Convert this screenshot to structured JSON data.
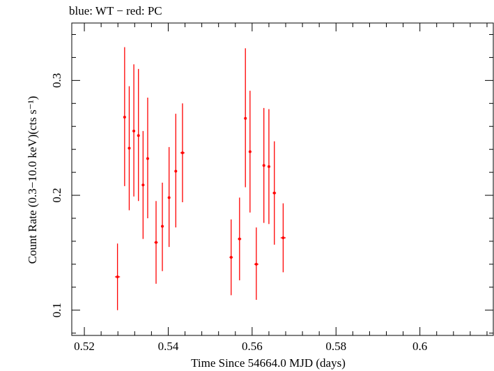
{
  "chart_data": {
    "type": "scatter",
    "title": "blue: WT − red: PC",
    "xlabel": "Time Since 54664.0 MJD (days)",
    "ylabel": "Count Rate (0.3−10.0 keV)(cts s⁻¹)",
    "xlim": [
      0.517,
      0.6175
    ],
    "ylim": [
      0.078,
      0.35
    ],
    "x_ticks": [
      0.52,
      0.54,
      0.56,
      0.58,
      0.6
    ],
    "x_tick_labels": [
      "0.52",
      "0.54",
      "0.56",
      "0.58",
      "0.6"
    ],
    "y_ticks": [
      0.1,
      0.2,
      0.3
    ],
    "y_tick_labels": [
      "0.1",
      "0.2",
      "0.3"
    ],
    "grid": false,
    "colors": {
      "WT": "#0000ff",
      "PC": "#ff0000"
    },
    "series": [
      {
        "color": "#ff0000",
        "marker": "dot-with-errorbars",
        "points": [
          {
            "x": 0.5279,
            "y": 0.129,
            "xerr": 0.0006,
            "ylo": 0.1,
            "yhi": 0.158
          },
          {
            "x": 0.5296,
            "y": 0.268,
            "xerr": 0.0003,
            "ylo": 0.208,
            "yhi": 0.329
          },
          {
            "x": 0.5307,
            "y": 0.241,
            "xerr": 0.0003,
            "ylo": 0.187,
            "yhi": 0.295
          },
          {
            "x": 0.5318,
            "y": 0.256,
            "xerr": 0.0003,
            "ylo": 0.199,
            "yhi": 0.314
          },
          {
            "x": 0.5329,
            "y": 0.252,
            "xerr": 0.0003,
            "ylo": 0.195,
            "yhi": 0.31
          },
          {
            "x": 0.534,
            "y": 0.209,
            "xerr": 0.0003,
            "ylo": 0.162,
            "yhi": 0.256
          },
          {
            "x": 0.5351,
            "y": 0.232,
            "xerr": 0.0003,
            "ylo": 0.18,
            "yhi": 0.285
          },
          {
            "x": 0.5371,
            "y": 0.159,
            "xerr": 0.0004,
            "ylo": 0.123,
            "yhi": 0.195
          },
          {
            "x": 0.5386,
            "y": 0.173,
            "xerr": 0.0003,
            "ylo": 0.134,
            "yhi": 0.211
          },
          {
            "x": 0.5402,
            "y": 0.198,
            "xerr": 0.0003,
            "ylo": 0.155,
            "yhi": 0.242
          },
          {
            "x": 0.5418,
            "y": 0.221,
            "xerr": 0.0003,
            "ylo": 0.172,
            "yhi": 0.271
          },
          {
            "x": 0.5434,
            "y": 0.237,
            "xerr": 0.0005,
            "ylo": 0.194,
            "yhi": 0.28
          },
          {
            "x": 0.555,
            "y": 0.146,
            "xerr": 0.0004,
            "ylo": 0.113,
            "yhi": 0.179
          },
          {
            "x": 0.557,
            "y": 0.162,
            "xerr": 0.0004,
            "ylo": 0.126,
            "yhi": 0.198
          },
          {
            "x": 0.5584,
            "y": 0.267,
            "xerr": 0.0003,
            "ylo": 0.207,
            "yhi": 0.328
          },
          {
            "x": 0.5595,
            "y": 0.238,
            "xerr": 0.0003,
            "ylo": 0.185,
            "yhi": 0.291
          },
          {
            "x": 0.561,
            "y": 0.14,
            "xerr": 0.0005,
            "ylo": 0.109,
            "yhi": 0.172
          },
          {
            "x": 0.5628,
            "y": 0.226,
            "xerr": 0.0003,
            "ylo": 0.176,
            "yhi": 0.276
          },
          {
            "x": 0.564,
            "y": 0.225,
            "xerr": 0.0003,
            "ylo": 0.175,
            "yhi": 0.275
          },
          {
            "x": 0.5653,
            "y": 0.202,
            "xerr": 0.0004,
            "ylo": 0.157,
            "yhi": 0.247
          },
          {
            "x": 0.5674,
            "y": 0.163,
            "xerr": 0.0006,
            "ylo": 0.133,
            "yhi": 0.193
          }
        ]
      }
    ]
  }
}
